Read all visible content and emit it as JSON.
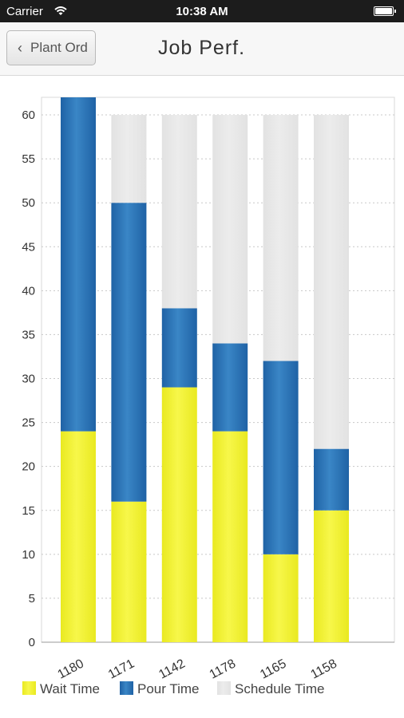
{
  "status_bar": {
    "carrier": "Carrier",
    "time": "10:38 AM"
  },
  "nav": {
    "back_label": "Plant Ord",
    "title": "Job Perf."
  },
  "colors": {
    "wait": "#f0f028",
    "pour": "#2a6fb0",
    "schedule": "#e6e6e6"
  },
  "chart_data": {
    "type": "bar",
    "stacked": true,
    "categories": [
      "1180",
      "1171",
      "1142",
      "1178",
      "1165",
      "1158"
    ],
    "series": [
      {
        "name": "Wait Time",
        "values": [
          24,
          16,
          29,
          24,
          10,
          15
        ]
      },
      {
        "name": "Pour Time",
        "values": [
          38,
          34,
          9,
          10,
          22,
          7
        ]
      },
      {
        "name": "Schedule Time",
        "values": [
          0,
          10,
          22,
          26,
          28,
          38
        ]
      }
    ],
    "ylim": [
      0,
      62
    ],
    "yticks": [
      "0",
      "5",
      "10",
      "15",
      "20",
      "25",
      "30",
      "35",
      "40",
      "45",
      "50",
      "55",
      "60"
    ],
    "grid": true,
    "legend": "bottom"
  }
}
